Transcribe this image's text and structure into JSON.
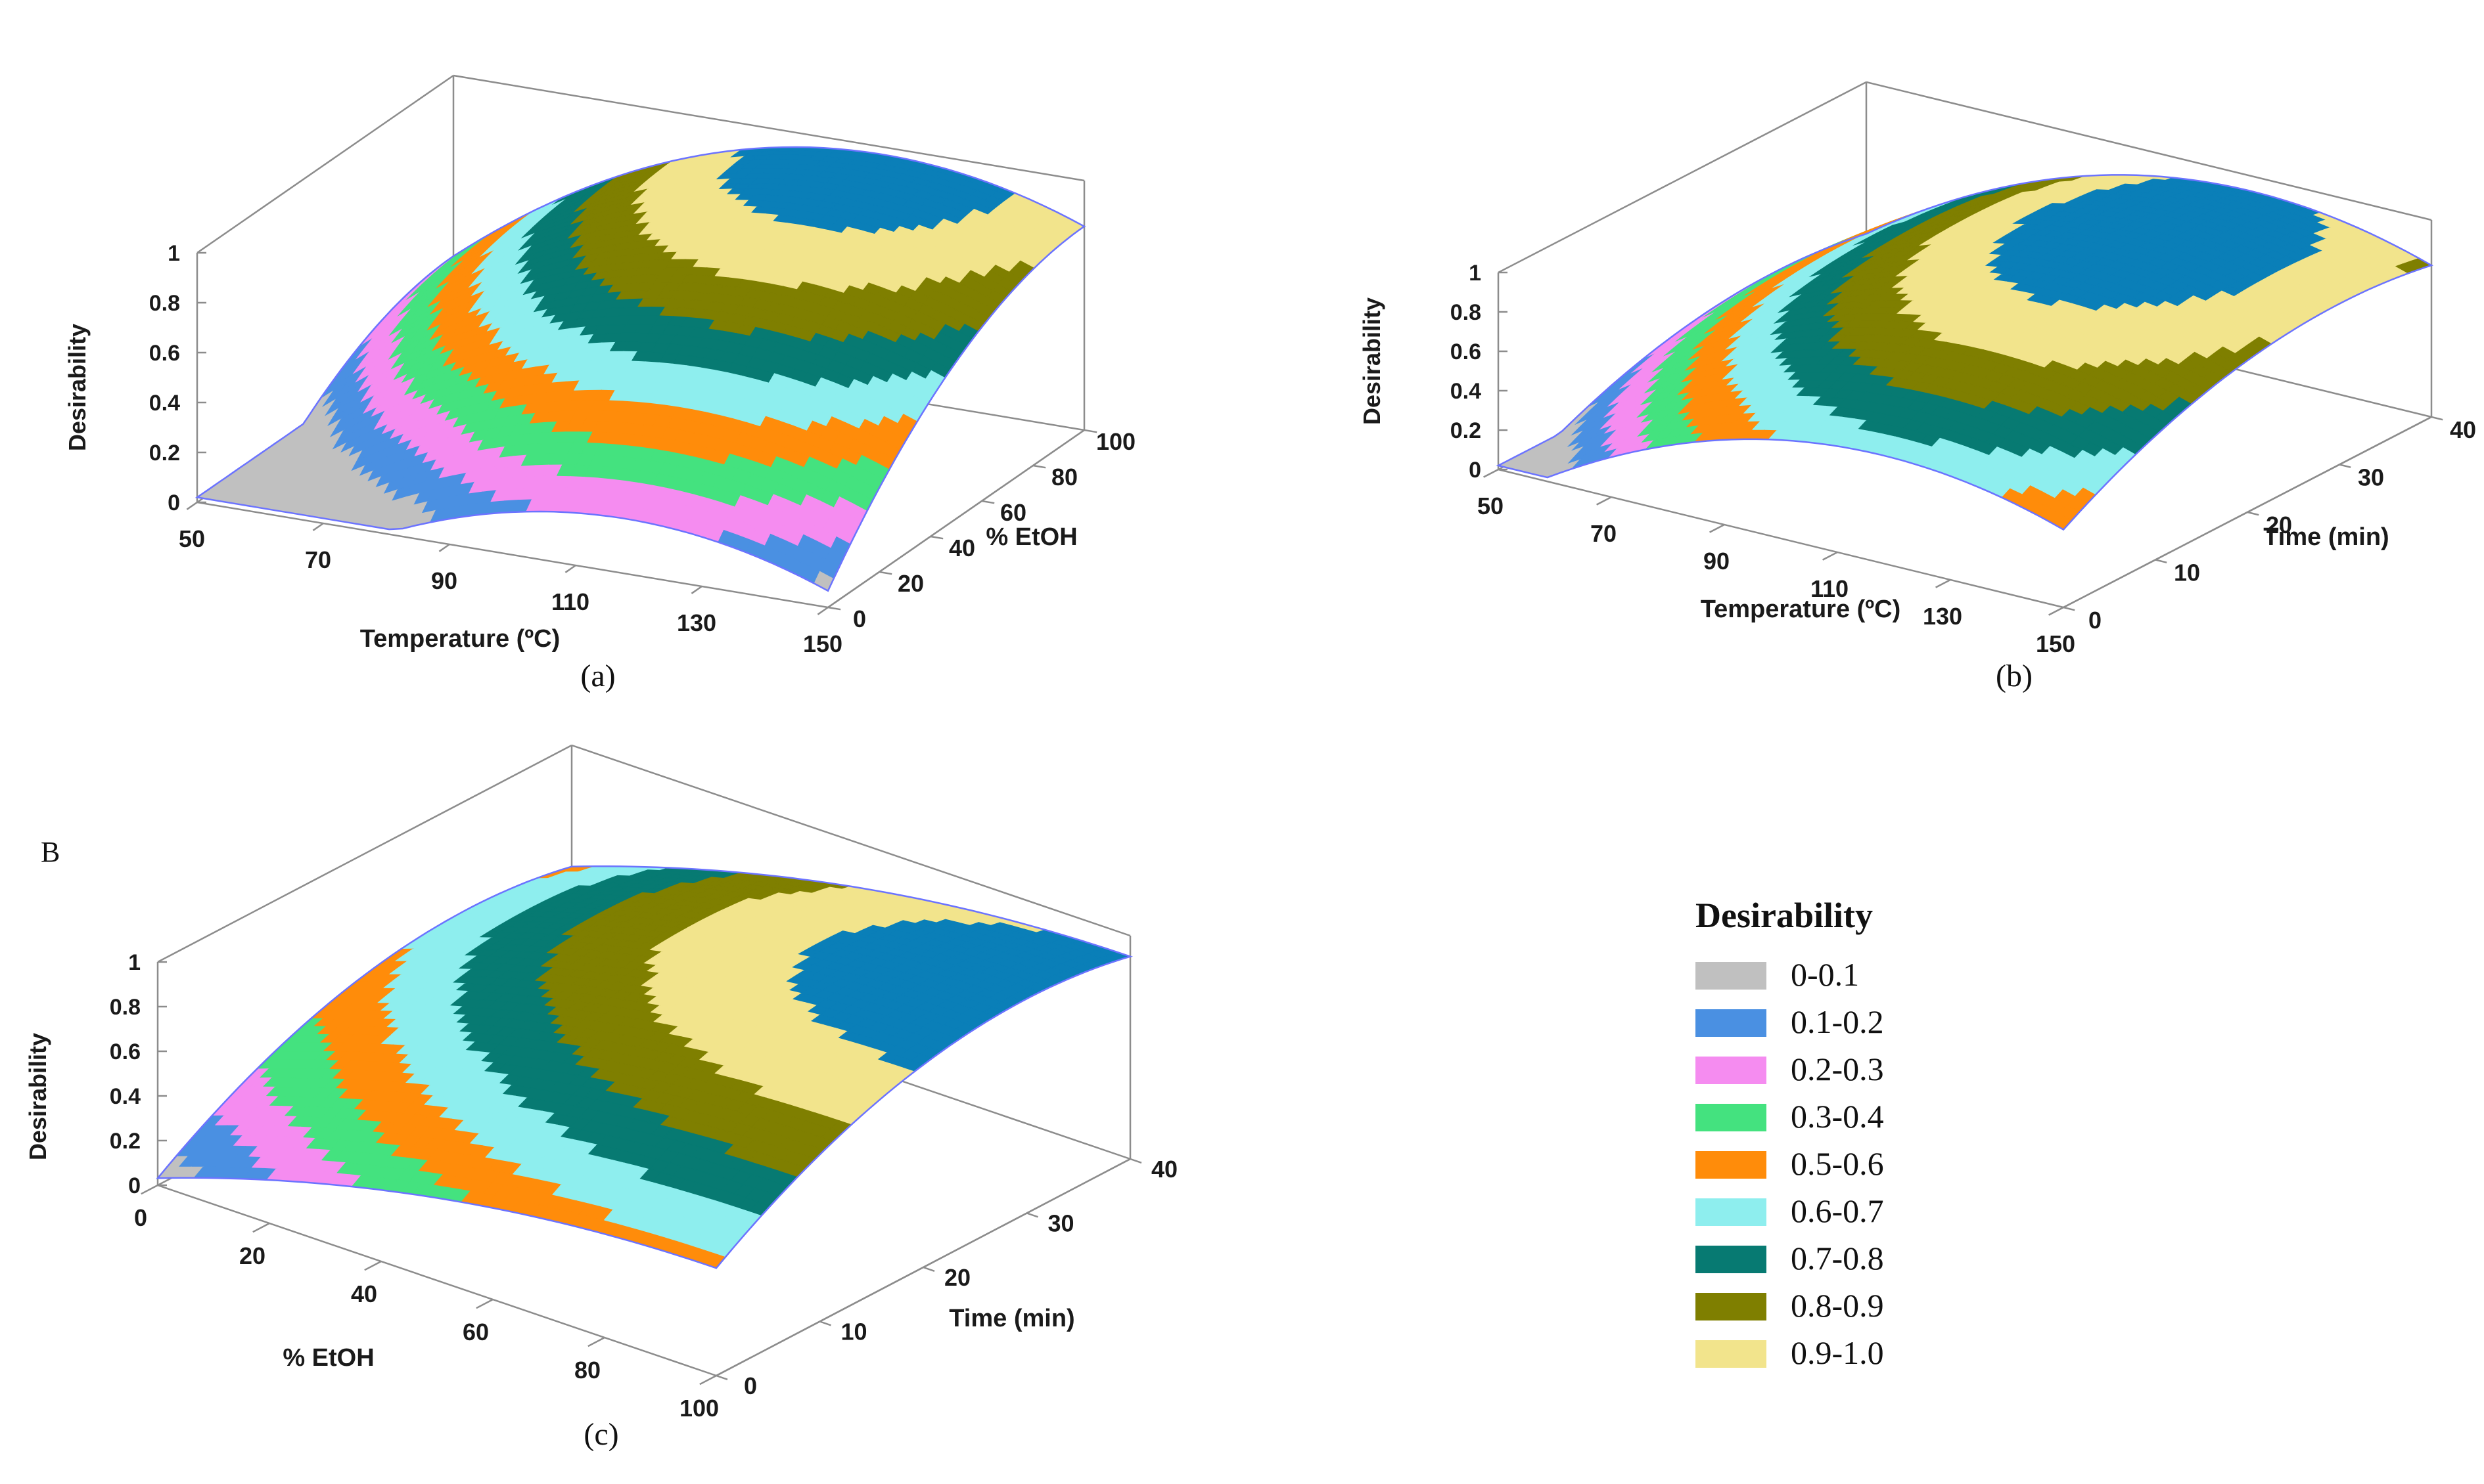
{
  "figure": {
    "section_label": "B",
    "zlabel": "Desirability",
    "z_ticks": [
      "0",
      "0.2",
      "0.4",
      "0.6",
      "0.8",
      "1"
    ]
  },
  "chart_data": [
    {
      "id": "a",
      "type": "surface",
      "caption": "(a)",
      "xlabel": "Temperature (ºC)",
      "ylabel": "% EtOH",
      "zlabel": "Desirability",
      "x_ticks": [
        "50",
        "70",
        "90",
        "110",
        "130",
        "150"
      ],
      "y_ticks": [
        "0",
        "20",
        "40",
        "60",
        "80",
        "100"
      ],
      "xlim": [
        50,
        150
      ],
      "ylim": [
        0,
        100
      ],
      "zlim": [
        0,
        1
      ],
      "optimum": {
        "x": 118,
        "y": 100
      }
    },
    {
      "id": "b",
      "type": "surface",
      "caption": "(b)",
      "xlabel": "Temperature (ºC)",
      "ylabel": "Time (min)",
      "zlabel": "Desirability",
      "x_ticks": [
        "50",
        "70",
        "90",
        "110",
        "130",
        "150"
      ],
      "y_ticks": [
        "0",
        "10",
        "20",
        "30",
        "40"
      ],
      "xlim": [
        50,
        150
      ],
      "ylim": [
        0,
        40
      ],
      "zlim": [
        0,
        1
      ],
      "optimum": {
        "x": 118,
        "y": 30
      }
    },
    {
      "id": "c",
      "type": "surface",
      "caption": "(c)",
      "xlabel": "% EtOH",
      "ylabel": "Time (min)",
      "zlabel": "Desirability",
      "x_ticks": [
        "0",
        "20",
        "40",
        "60",
        "80",
        "100"
      ],
      "y_ticks": [
        "0",
        "10",
        "20",
        "30",
        "40"
      ],
      "xlim": [
        0,
        100
      ],
      "ylim": [
        0,
        40
      ],
      "zlim": [
        0,
        1
      ],
      "optimum": {
        "x": 100,
        "y": 30
      }
    }
  ],
  "legend": {
    "title": "Desirability",
    "items": [
      {
        "label": "0-0.1",
        "color": "#c0c0c0"
      },
      {
        "label": "0.1-0.2",
        "color": "#4a90e2"
      },
      {
        "label": "0.2-0.3",
        "color": "#f58cf0"
      },
      {
        "label": "0.3-0.4",
        "color": "#44e27f"
      },
      {
        "label": "0.5-0.6",
        "color": "#ff8c0a"
      },
      {
        "label": "0.6-0.7",
        "color": "#8eeeee"
      },
      {
        "label": "0.7-0.8",
        "color": "#077a72"
      },
      {
        "label": "0.8-0.9",
        "color": "#7f7f00"
      },
      {
        "label": "0.9-1.0",
        "color": "#f2e48c"
      }
    ]
  },
  "colors": {
    "band_colors": [
      "#c0c0c0",
      "#4a90e2",
      "#f58cf0",
      "#44e27f",
      "#ff8c0a",
      "#8eeeee",
      "#077a72",
      "#7f7f00",
      "#f2e48c",
      "#0a7fb8"
    ],
    "surface_edge": "#6b73ff",
    "box_line": "#8c8c8c"
  }
}
